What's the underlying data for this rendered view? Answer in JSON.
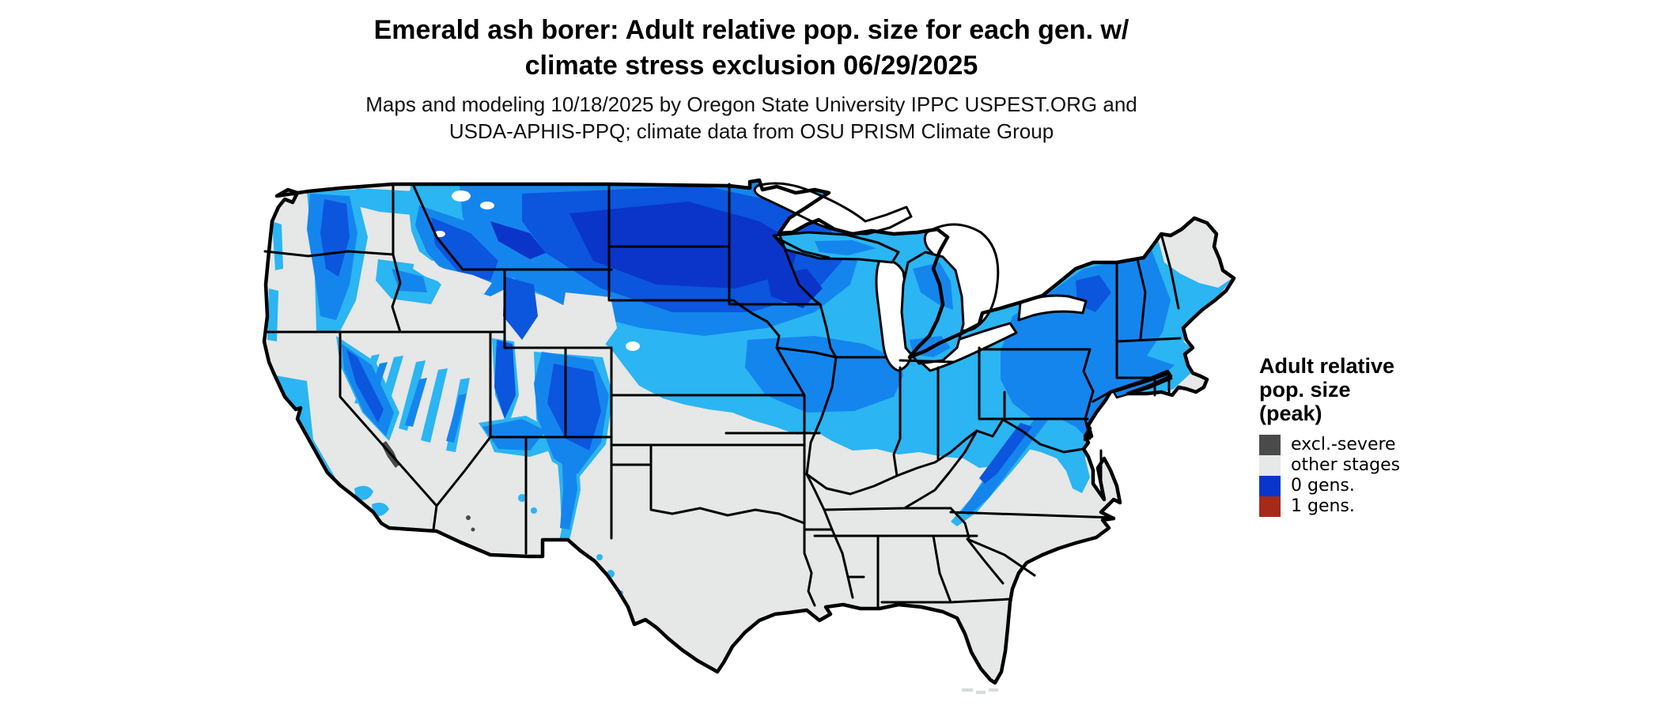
{
  "header": {
    "title_line1": "Emerald ash borer: Adult relative pop. size for each gen. w/",
    "title_line2": "climate stress exclusion 06/29/2025",
    "subtitle_line1": "Maps and modeling 10/18/2025 by Oregon State University IPPC USPEST.ORG and",
    "subtitle_line2": "USDA-APHIS-PPQ; climate data from OSU PRISM Climate Group"
  },
  "legend": {
    "title_line1": "Adult relative",
    "title_line2": "pop. size",
    "title_line3": "(peak)",
    "items": [
      {
        "label": "excl.-severe",
        "color": "#4a4a4a"
      },
      {
        "label": "other stages",
        "color": "#e7e8e8"
      },
      {
        "label": "0 gens.",
        "color": "#0a35cc"
      },
      {
        "label": "1 gens.",
        "color": "#a52a1a"
      }
    ]
  },
  "map": {
    "region": "Contiguous United States",
    "palette": {
      "background": "#ffffff",
      "land_other_stages": "#e6e7e7",
      "border": "#000000",
      "excl_severe": "#4a4a4a",
      "pop_low": "#2bb5f2",
      "pop_mid": "#1585ee",
      "pop_high": "#0c55dd",
      "pop_max": "#0a35c8",
      "islands": "#d8dbdb"
    }
  }
}
